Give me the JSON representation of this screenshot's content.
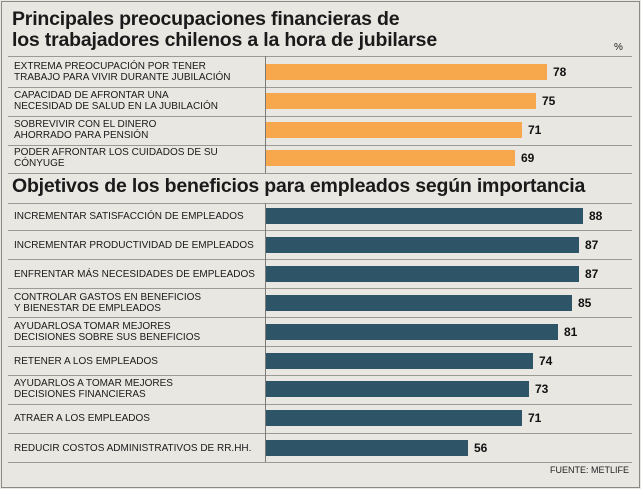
{
  "chart_data": [
    {
      "type": "bar",
      "orientation": "horizontal",
      "title": "Principales preocupaciones financieras de los trabajadores chilenos a la hora de jubilarse",
      "title_lines": [
        "Principales preocupaciones financieras de",
        "los trabajadores chilenos a la hora de jubilarse"
      ],
      "unit_label": "%",
      "categories": [
        [
          "EXTREMA PREOCUPACIÓN POR TENER",
          "TRABAJO PARA VIVIR DURANTE JUBILACIÓN"
        ],
        [
          "CAPACIDAD DE AFRONTAR UNA",
          "NECESIDAD DE SALUD EN LA JUBILACIÓN"
        ],
        [
          "SOBREVIVIR CON EL DINERO",
          "AHORRADO PARA PENSIÓN"
        ],
        [
          "PODER AFRONTAR LOS CUIDADOS DE SU CÓNYUGE"
        ]
      ],
      "values": [
        78,
        75,
        71,
        69
      ],
      "xlim": [
        0,
        88
      ],
      "color": "#f7a84c"
    },
    {
      "type": "bar",
      "orientation": "horizontal",
      "title": "Objetivos de los beneficios para empleados según importancia",
      "categories": [
        [
          "INCREMENTAR SATISFACCIÓN DE EMPLEADOS"
        ],
        [
          "INCREMENTAR PRODUCTIVIDAD DE  EMPLEADOS"
        ],
        [
          "ENFRENTAR MÁS NECESIDADES DE EMPLEADOS"
        ],
        [
          "CONTROLAR GASTOS EN BENEFICIOS",
          "Y BIENESTAR DE EMPLEADOS"
        ],
        [
          "AYUDARLOSA TOMAR MEJORES",
          "DECISIONES SOBRE SUS BENEFICIOS"
        ],
        [
          "RETENER A LOS EMPLEADOS"
        ],
        [
          "AYUDARLOS A TOMAR MEJORES",
          "DECISIONES FINANCIERAS"
        ],
        [
          "ATRAER A LOS EMPLEADOS"
        ],
        [
          "REDUCIR COSTOS ADMINISTRATIVOS DE RR.HH."
        ]
      ],
      "values": [
        88,
        87,
        87,
        85,
        81,
        74,
        73,
        71,
        56
      ],
      "xlim": [
        0,
        88
      ],
      "color": "#2e5467"
    }
  ],
  "source": "FUENTE: METLIFE"
}
